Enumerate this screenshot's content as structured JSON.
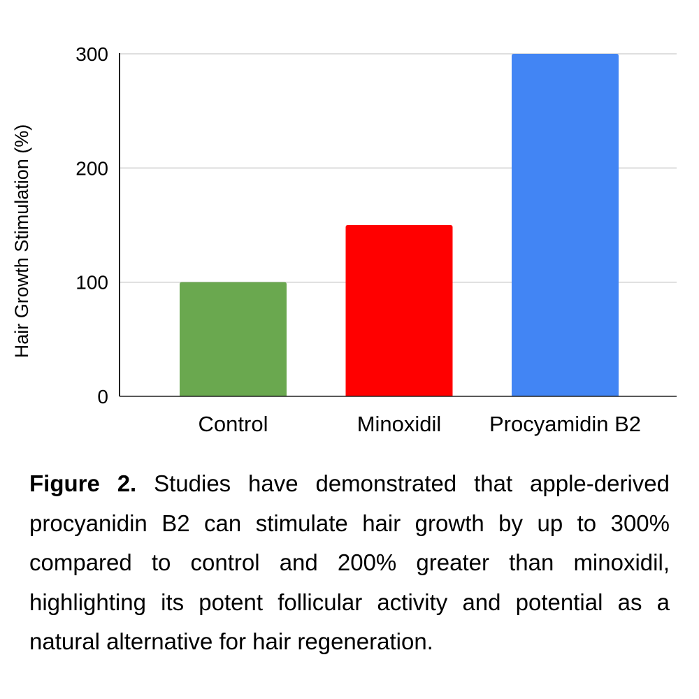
{
  "chart_data": {
    "type": "bar",
    "title": "",
    "xlabel": "",
    "ylabel": "Hair Growth Stimulation (%)",
    "categories": [
      "Control",
      "Minoxidil",
      "Procyamidin B2"
    ],
    "values": [
      100,
      150,
      300
    ],
    "colors": [
      "#6aa84f",
      "#ff0000",
      "#4285f4"
    ],
    "ylim": [
      0,
      300
    ],
    "yticks": [
      0,
      100,
      200,
      300
    ],
    "grid": true
  },
  "caption": {
    "label": "Figure 2.",
    "text": " Studies have demonstrated that apple-derived procyanidin B2 can stimulate hair growth by up to 300% compared to control and 200% greater than minoxidil, highlighting its potent follicular activity and potential as a natural alternative for hair regeneration."
  }
}
